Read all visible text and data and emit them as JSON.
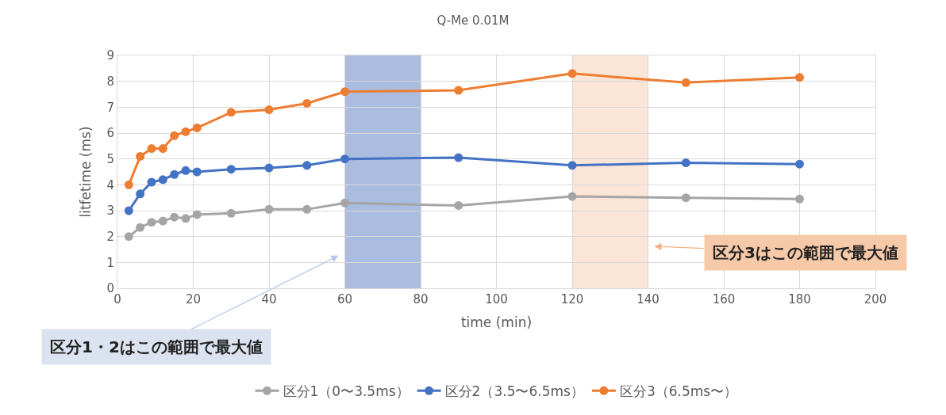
{
  "chart_data": {
    "type": "line",
    "title": "Q-Me 0.01M",
    "xlabel": "time (min)",
    "ylabel": "litfetime (ms)",
    "x": [
      3,
      6,
      9,
      12,
      15,
      18,
      21,
      30,
      40,
      50,
      60,
      90,
      120,
      150,
      180
    ],
    "series": [
      {
        "name": "区分1（0〜3.5ms）",
        "color": "#a5a5a5",
        "values": [
          2.0,
          2.35,
          2.55,
          2.6,
          2.75,
          2.7,
          2.85,
          2.9,
          3.05,
          3.05,
          3.3,
          3.2,
          3.55,
          3.5,
          3.45
        ]
      },
      {
        "name": "区分2（3.5〜6.5ms）",
        "color": "#4472c4",
        "values": [
          3.0,
          3.65,
          4.1,
          4.2,
          4.4,
          4.55,
          4.5,
          4.6,
          4.65,
          4.75,
          5.0,
          5.05,
          4.75,
          4.85,
          4.8
        ]
      },
      {
        "name": "区分3（6.5ms〜）",
        "color": "#ed7d31",
        "values": [
          4.0,
          5.1,
          5.4,
          5.4,
          5.9,
          6.05,
          6.2,
          6.8,
          6.9,
          7.15,
          7.6,
          7.65,
          8.3,
          7.95,
          8.15
        ]
      }
    ],
    "xlim": [
      0,
      200
    ],
    "xticks": [
      0,
      20,
      40,
      60,
      80,
      100,
      120,
      140,
      160,
      180,
      200
    ],
    "ylim": [
      0,
      9
    ],
    "yticks": [
      0,
      1,
      2,
      3,
      4,
      5,
      6,
      7,
      8,
      9
    ],
    "bands": [
      {
        "axis": "x",
        "from": 60,
        "to": 80,
        "color": "#8ea5d6"
      },
      {
        "axis": "x",
        "from": 120,
        "to": 140,
        "color": "#f9dcc9"
      }
    ],
    "annotations": [
      "区分1・2はこの範囲で最大値",
      "区分3はこの範囲で最大値"
    ],
    "grid": true,
    "legend": "bottom",
    "marker": "circle",
    "line_style": "solid"
  }
}
